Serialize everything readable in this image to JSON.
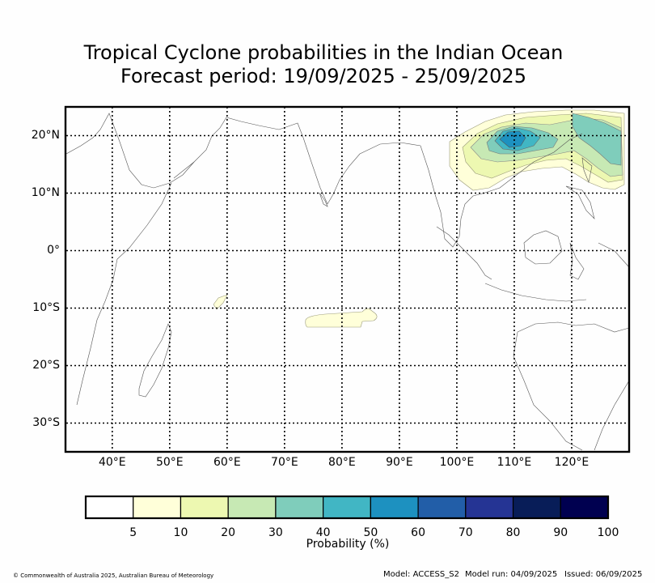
{
  "title": {
    "line1": "Tropical Cyclone probabilities in the Indian Ocean",
    "line2": "Forecast period: 19/09/2025 - 25/09/2025"
  },
  "map": {
    "lon_range": [
      32,
      130
    ],
    "lat_range": [
      -35,
      25
    ],
    "lat_ticks": [
      {
        "value": 20,
        "label": "20°N"
      },
      {
        "value": 10,
        "label": "10°N"
      },
      {
        "value": 0,
        "label": "0°"
      },
      {
        "value": -10,
        "label": "10°S"
      },
      {
        "value": -20,
        "label": "20°S"
      },
      {
        "value": -30,
        "label": "30°S"
      }
    ],
    "lon_ticks": [
      {
        "value": 40,
        "label": "40°E"
      },
      {
        "value": 50,
        "label": "50°E"
      },
      {
        "value": 60,
        "label": "60°E"
      },
      {
        "value": 70,
        "label": "70°E"
      },
      {
        "value": 80,
        "label": "80°E"
      },
      {
        "value": 90,
        "label": "90°E"
      },
      {
        "value": 100,
        "label": "100°E"
      },
      {
        "value": 110,
        "label": "110°E"
      },
      {
        "value": 120,
        "label": "120°E"
      }
    ],
    "grid": true
  },
  "colorbar": {
    "label": "Probability (%)",
    "colors": [
      "#ffffff",
      "#ffffd9",
      "#edf8b1",
      "#c7e9b4",
      "#7fcdbb",
      "#41b6c4",
      "#1d91c0",
      "#225ea8",
      "#253494",
      "#081d58",
      "#000050"
    ],
    "ticks": [
      "5",
      "10",
      "20",
      "30",
      "40",
      "50",
      "60",
      "70",
      "80",
      "90",
      "100"
    ]
  },
  "footer": {
    "copyright": "© Commonwealth of Australia 2025, Australian Bureau of Meteorology",
    "model": "Model: ACCESS_S2",
    "model_run": "Model run: 04/09/2025",
    "issued": "Issued: 06/09/2025"
  }
}
